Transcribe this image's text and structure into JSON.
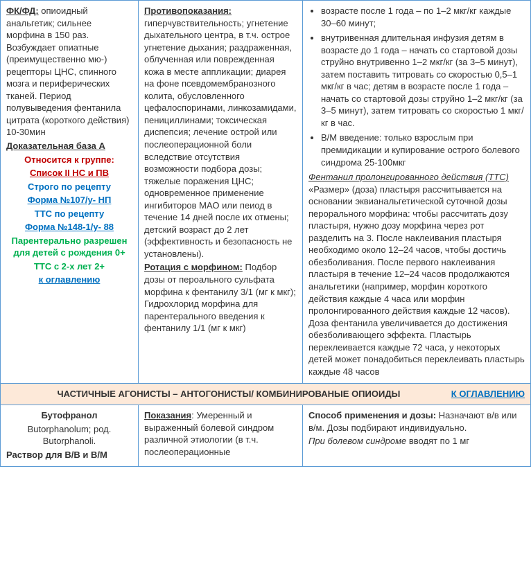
{
  "row1": {
    "col1": {
      "fkfd_label": "ФК/ФД:",
      "fkfd_text": " опиоидный анальгетик; сильнее морфина в 150 раз. Возбуждает опиатные (преимущественно мю-) рецепторы ЦНС, спинного мозга и периферических тканей. Период полувыведения фентанила цитрата (короткого действия) 10-30мин",
      "evidence": "Доказательная база А",
      "group_label": "Относится к группе:",
      "group_value": "Список II НС и ПВ",
      "strict": "Строго по рецепту",
      "form107": "Форма №107/у- НП",
      "tts_rx": "ТТС по рецепту",
      "form148": "Форма №148-1/у- 88",
      "parenteral": "Парентерально разрешен для детей с рождения 0+",
      "tts_age": "ТТС с 2-х лет 2+",
      "toc": "к оглавлению"
    },
    "col2": {
      "contra_label": "Противопоказания:",
      "contra_text": " гиперчувствительность; угнетение дыхательного центра, в т.ч. острое угнетение дыхания; раздраженная, облученная или поврежденная кожа в месте аппликации; диарея на фоне псевдомембранозного колита, обусловленного цефалоспоринами, линкозамидами, пенициллинами; токсическая диспепсия; лечение острой или послеоперационной боли вследствие отсутствия возможности подбора дозы; тяжелые поражения ЦНС; одновременное применение ингибиторов МАО или пеиод в течение 14 дней после их отмены; детский возраст до 2 лет (эффективность и безопасность не установлены).",
      "rotation_label": "Ротация с морфином:",
      "rotation_text": " Подбор дозы от пероального сульфата морфина к фентанилу 3/1 (мг к мкг); Гидрохлорид морфина для парентерального введения к фентанилу 1/1 (мг к мкг)"
    },
    "col3": {
      "bullet1": "возрасте после 1 года – по 1–2 мкг/кг каждые 30–60 минут;",
      "bullet2": "внутривенная длительная инфузия детям в возрасте до 1 года – начать со стартовой дозы струйно внутривенно 1–2 мкг/кг (за 3–5 минут), затем поставить титровать со скоростью 0,5–1 мкг/кг в час; детям в возрасте после 1 года – начать со стартовой дозы струйно 1–2 мкг/кг (за 3–5 минут), затем титровать со скоростью 1 мкг/кг в час.",
      "bullet3": "В/М введение: только взрослым при премидикации и купирование острого болевого синдрома 25-100мкг",
      "tts_label": "Фентанил пролонгированного действия (ТТС)",
      "tts_text": " «Размер» (доза) пластыря рассчитывается на основании эквианальгетической суточной дозы перорального морфина: чтобы рассчитать дозу пластыря, нужно дозу морфина через рот разделить на 3. После наклеивания пластыря необходимо около 12–24 часов, чтобы достичь обезболивания. После первого наклеивания пластыря в течение 12–24 часов продолжаются анальгетики (например, морфин короткого действия каждые 4 часа или морфин пролонгированного действия каждые 12 часов). Доза фентанила увеличивается до достижения обезболивающего эффекта. Пластырь переклеивается каждые 72 часа, у некоторых детей может понадобиться переклеивать пластырь каждые 48 часов"
    }
  },
  "section": {
    "title": "ЧАСТИЧНЫЕ АГОНИСТЫ – АНТОГОНИСТЫ/ КОМБИНИРОВАНЫЕ ОПИОИДЫ",
    "toc": "К ОГЛАВЛЕНИЮ"
  },
  "row2": {
    "col1": {
      "name_ru": "Бутофранол",
      "name_lat": "Butorphanolum; род. Butorphanoli.",
      "form_label": "Раствор для В/В и В/М"
    },
    "col2": {
      "ind_label": "Показания",
      "ind_text": ": Умеренный и выраженный болевой синдром различной этиологии (в т.ч. послеоперационные"
    },
    "col3": {
      "dose_label": "Способ применения и дозы:",
      "dose_text": " Назначают в/в или в/м. Дозы подбирают индивидуально.",
      "pain_label": "При болевом синдроме",
      "pain_text": " вводят по 1 мг"
    }
  }
}
